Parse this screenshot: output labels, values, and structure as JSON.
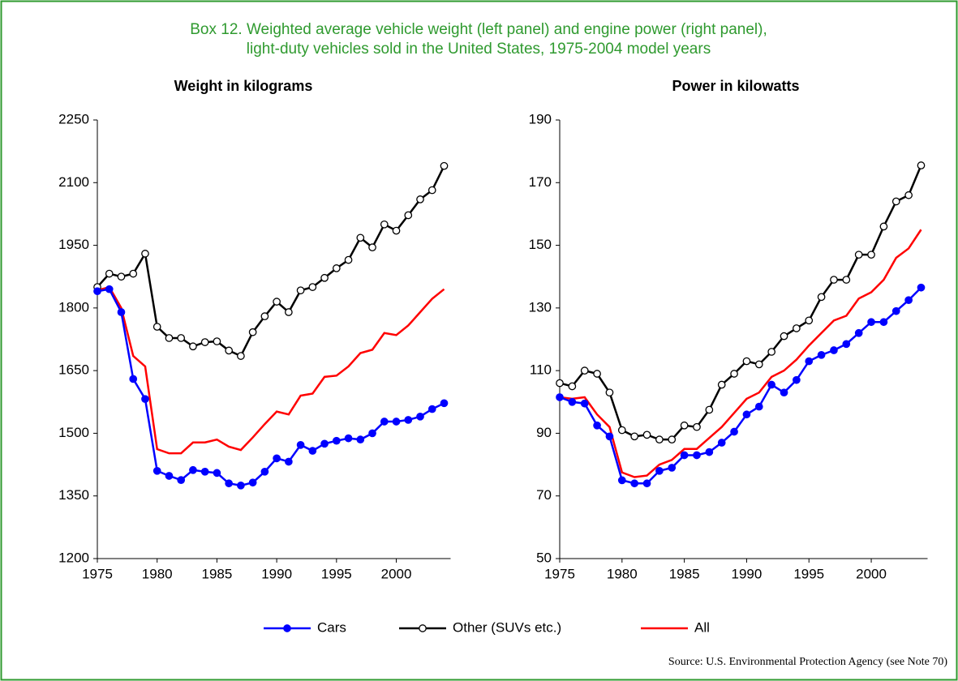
{
  "title": "Box 12. Weighted average vehicle weight (left panel) and engine power (right panel),",
  "title_line2": "light-duty vehicles sold in the United States, 1975-2004 model years",
  "source": "Source: U.S. Environmental Protection Agency (see Note 70)",
  "chart_data": [
    {
      "type": "line",
      "title": "Weight in kilograms",
      "x": [
        1975,
        1976,
        1977,
        1978,
        1979,
        1980,
        1981,
        1982,
        1983,
        1984,
        1985,
        1986,
        1987,
        1988,
        1989,
        1990,
        1991,
        1992,
        1993,
        1994,
        1995,
        1996,
        1997,
        1998,
        1999,
        2000,
        2001,
        2002,
        2003,
        2004
      ],
      "xlim": [
        1975,
        2004
      ],
      "xticks": [
        1975,
        1980,
        1985,
        1990,
        1995,
        2000
      ],
      "ylim": [
        1200,
        2250
      ],
      "yticks": [
        1200,
        1350,
        1500,
        1650,
        1800,
        1950,
        2100,
        2250
      ],
      "series": [
        {
          "name": "Cars",
          "color": "#0000ff",
          "marker": "filled",
          "values": [
            1840,
            1845,
            1790,
            1630,
            1582,
            1410,
            1398,
            1388,
            1412,
            1408,
            1405,
            1380,
            1375,
            1382,
            1408,
            1440,
            1432,
            1472,
            1458,
            1475,
            1482,
            1488,
            1485,
            1500,
            1528,
            1528,
            1532,
            1540,
            1558,
            1572
          ]
        },
        {
          "name": "Other (SUVs etc.)",
          "color": "#000000",
          "marker": "open",
          "values": [
            1850,
            1882,
            1875,
            1882,
            1930,
            1755,
            1728,
            1728,
            1708,
            1718,
            1720,
            1698,
            1685,
            1742,
            1780,
            1815,
            1790,
            1842,
            1850,
            1872,
            1895,
            1915,
            1968,
            1945,
            2000,
            1985,
            2022,
            2060,
            2082,
            2140
          ]
        },
        {
          "name": "All",
          "color": "#ff0000",
          "values": [
            1842,
            1850,
            1800,
            1685,
            1660,
            1462,
            1452,
            1452,
            1478,
            1478,
            1485,
            1468,
            1460,
            1490,
            1522,
            1552,
            1545,
            1590,
            1595,
            1635,
            1638,
            1660,
            1692,
            1700,
            1740,
            1735,
            1758,
            1790,
            1822,
            1845
          ]
        }
      ]
    },
    {
      "type": "line",
      "title": "Power in kilowatts",
      "x": [
        1975,
        1976,
        1977,
        1978,
        1979,
        1980,
        1981,
        1982,
        1983,
        1984,
        1985,
        1986,
        1987,
        1988,
        1989,
        1990,
        1991,
        1992,
        1993,
        1994,
        1995,
        1996,
        1997,
        1998,
        1999,
        2000,
        2001,
        2002,
        2003,
        2004
      ],
      "xlim": [
        1975,
        2004
      ],
      "xticks": [
        1975,
        1980,
        1985,
        1990,
        1995,
        2000
      ],
      "ylim": [
        50,
        190
      ],
      "yticks": [
        50,
        70,
        90,
        110,
        130,
        150,
        170,
        190
      ],
      "series": [
        {
          "name": "Cars",
          "color": "#0000ff",
          "marker": "filled",
          "values": [
            101.5,
            100,
            99.5,
            92.5,
            89,
            75,
            74,
            74,
            78,
            79,
            83,
            83,
            84,
            87,
            90.5,
            96,
            98.5,
            105.5,
            103,
            107,
            113,
            115,
            116.5,
            118.5,
            122,
            125.5,
            125.5,
            129,
            132.5,
            136.5
          ]
        },
        {
          "name": "Other (SUVs etc.)",
          "color": "#000000",
          "marker": "open",
          "values": [
            106,
            105,
            110,
            109,
            103,
            91,
            89,
            89.5,
            88,
            88,
            92.5,
            92,
            97.5,
            105.5,
            109,
            113,
            112,
            116,
            121,
            123.5,
            126,
            133.5,
            139,
            139,
            147,
            147,
            156,
            164,
            166,
            175.5
          ]
        },
        {
          "name": "All",
          "color": "#ff0000",
          "values": [
            101.5,
            101,
            101.5,
            96,
            92,
            77.5,
            76,
            76.5,
            80,
            81.5,
            85,
            85,
            88.5,
            92,
            96.5,
            101,
            103,
            108,
            110,
            113.5,
            118,
            122,
            126,
            127.5,
            133,
            135,
            139,
            146,
            149,
            155
          ]
        }
      ]
    }
  ]
}
